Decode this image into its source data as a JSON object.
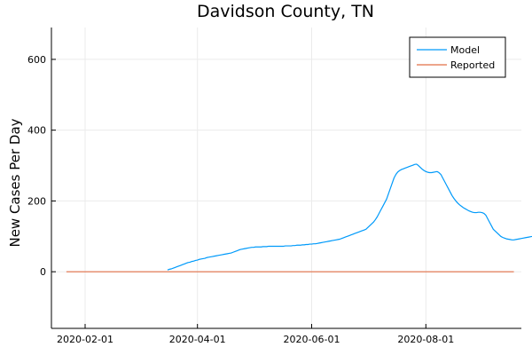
{
  "chart_data": {
    "type": "line",
    "title": "Davidson County, TN",
    "xlabel": "",
    "ylabel": "New Cases Per Day",
    "x_start": "2020-01-22",
    "x_end": "2020-09-16",
    "xlim": [
      "2020-01-14",
      "2020-09-21"
    ],
    "ylim": [
      -160,
      690
    ],
    "x_ticks": [
      "2020-02-01",
      "2020-04-01",
      "2020-06-01",
      "2020-08-01"
    ],
    "y_ticks": [
      0,
      200,
      400,
      600
    ],
    "grid": true,
    "legend_position": "top-right",
    "series": [
      {
        "name": "Model",
        "color": "#009AFA",
        "x_start": "2020-03-16",
        "values": [
          5,
          7,
          8,
          10,
          12,
          14,
          16,
          18,
          20,
          22,
          24,
          26,
          27,
          29,
          30,
          32,
          33,
          35,
          36,
          37,
          38,
          40,
          41,
          42,
          43,
          44,
          45,
          46,
          47,
          48,
          49,
          50,
          51,
          52,
          53,
          55,
          57,
          59,
          61,
          63,
          64,
          65,
          66,
          67,
          68,
          69,
          69,
          70,
          70,
          70,
          70,
          71,
          71,
          71,
          72,
          72,
          72,
          72,
          72,
          72,
          72,
          72,
          72,
          73,
          73,
          73,
          73,
          74,
          74,
          75,
          75,
          75,
          76,
          76,
          77,
          77,
          78,
          78,
          79,
          79,
          80,
          81,
          82,
          83,
          84,
          85,
          86,
          87,
          88,
          89,
          90,
          91,
          92,
          94,
          96,
          98,
          100,
          102,
          104,
          106,
          108,
          110,
          112,
          114,
          116,
          118,
          120,
          125,
          130,
          135,
          140,
          147,
          155,
          165,
          175,
          185,
          195,
          205,
          220,
          235,
          250,
          265,
          275,
          282,
          286,
          289,
          291,
          293,
          295,
          297,
          299,
          301,
          303,
          304,
          300,
          295,
          290,
          286,
          283,
          281,
          280,
          280,
          281,
          282,
          283,
          280,
          275,
          265,
          255,
          245,
          235,
          225,
          215,
          207,
          200,
          194,
          189,
          185,
          181,
          178,
          175,
          172,
          170,
          168,
          167,
          167,
          168,
          168,
          167,
          165,
          160,
          150,
          140,
          130,
          120,
          115,
          110,
          105,
          100,
          97,
          95,
          93,
          92,
          91,
          90,
          90,
          91,
          92,
          93,
          94,
          95,
          96,
          97,
          98,
          99,
          100,
          100
        ]
      },
      {
        "name": "Reported",
        "color": "#E26F46",
        "x_start": "2020-01-22",
        "values": [
          0,
          0,
          0,
          0,
          0,
          0,
          0,
          0,
          0,
          0,
          0,
          0,
          0,
          0,
          0,
          0,
          0,
          0,
          0,
          0,
          0,
          0,
          0,
          0,
          0,
          0,
          0,
          0,
          0,
          0,
          0,
          0,
          0,
          0,
          0,
          0,
          0,
          0,
          0,
          0,
          0,
          0,
          0,
          0,
          0,
          0,
          0,
          0,
          0,
          0,
          0,
          0,
          0,
          0,
          0,
          0,
          0,
          0,
          0,
          0,
          0,
          0,
          0,
          0,
          0,
          0,
          0,
          0,
          0,
          0,
          0,
          0,
          0,
          0,
          0,
          0,
          0,
          0,
          0,
          0,
          0,
          0,
          0,
          0,
          0,
          0,
          0,
          0,
          0,
          0,
          0,
          0,
          0,
          0,
          0,
          0,
          0,
          0,
          0,
          0,
          0,
          0,
          0,
          0,
          0,
          0,
          0,
          0,
          0,
          0,
          0,
          0,
          0,
          0,
          0,
          0,
          0,
          0,
          0,
          0,
          0,
          0,
          0,
          0,
          0,
          0,
          0,
          0,
          0,
          0,
          0,
          0,
          0,
          0,
          0,
          0,
          0,
          0,
          0,
          0,
          0,
          0,
          0,
          0,
          0,
          0,
          0,
          0,
          0,
          0,
          0,
          0,
          0,
          0,
          0,
          0,
          0,
          0,
          0,
          0,
          0,
          0,
          0,
          0,
          0,
          0,
          0,
          0,
          0,
          0,
          0,
          0,
          0,
          0,
          0,
          0,
          0,
          0,
          0,
          0,
          0,
          0,
          0,
          0,
          0,
          0,
          0,
          0,
          0,
          0,
          0,
          0,
          0,
          0,
          0,
          0,
          0,
          0,
          0,
          0,
          0,
          0,
          0,
          0,
          0,
          0,
          0,
          0,
          0,
          0,
          0,
          0,
          0,
          0,
          0,
          0,
          0,
          0,
          0,
          0,
          0,
          0,
          0,
          0,
          0,
          0,
          0,
          0,
          0,
          0,
          0,
          0,
          0,
          0,
          0,
          0,
          0,
          0,
          0,
          0
        ]
      }
    ]
  },
  "legend": {
    "model_label": "Model",
    "reported_label": "Reported"
  }
}
